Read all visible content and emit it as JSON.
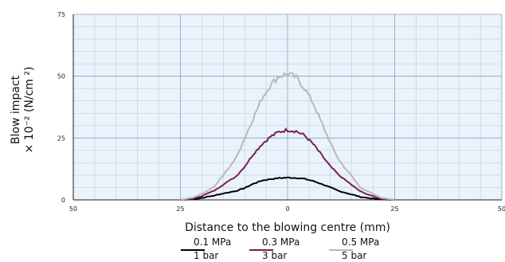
{
  "chart_data": {
    "type": "line",
    "xlabel": "Distance to the blowing centre (mm)",
    "ylabel_line1": "Blow impact",
    "ylabel_line2": "× 10⁻² (N/cm ²)",
    "x_ticks": [
      "50",
      "25",
      "0",
      "25",
      "50"
    ],
    "y_ticks": [
      "0",
      "25",
      "50",
      "75"
    ],
    "xlim": [
      -50,
      50
    ],
    "ylim": [
      0,
      75
    ],
    "grid": true,
    "legend_position": "bottom",
    "x": [
      -25,
      -22,
      -20,
      -17,
      -15,
      -12,
      -10,
      -8,
      -6,
      -4,
      -2,
      0,
      2,
      4,
      6,
      8,
      10,
      12,
      15,
      17,
      20,
      22,
      25
    ],
    "series": [
      {
        "name_line1": "0.1 MPa",
        "name_line2": "1 bar",
        "color": "#000000",
        "values": [
          0,
          0.3,
          0.8,
          1.8,
          2.6,
          3.6,
          4.8,
          6.5,
          7.8,
          8.4,
          8.8,
          9,
          8.9,
          8.5,
          7.6,
          6.4,
          5,
          3.6,
          2.2,
          1.2,
          0.5,
          0.2,
          0
        ]
      },
      {
        "name_line1": "0.3 MPa",
        "name_line2": "3 bar",
        "color": "#7b1f4e",
        "values": [
          0,
          0.6,
          1.6,
          3.8,
          6.2,
          9.5,
          13.5,
          18.5,
          22.5,
          25.5,
          27.5,
          28.3,
          27.8,
          26,
          22.5,
          18,
          13.5,
          10,
          6,
          3.4,
          1.4,
          0.4,
          0
        ]
      },
      {
        "name_line1": "0.5 MPa",
        "name_line2": "5 bar",
        "color": "#b8b8b8",
        "values": [
          0,
          1,
          2.5,
          5.5,
          10,
          17,
          25,
          33,
          41,
          46.5,
          50,
          51,
          49.5,
          45,
          39,
          31,
          23,
          16,
          9.5,
          5,
          2.3,
          0.8,
          0
        ]
      }
    ]
  }
}
